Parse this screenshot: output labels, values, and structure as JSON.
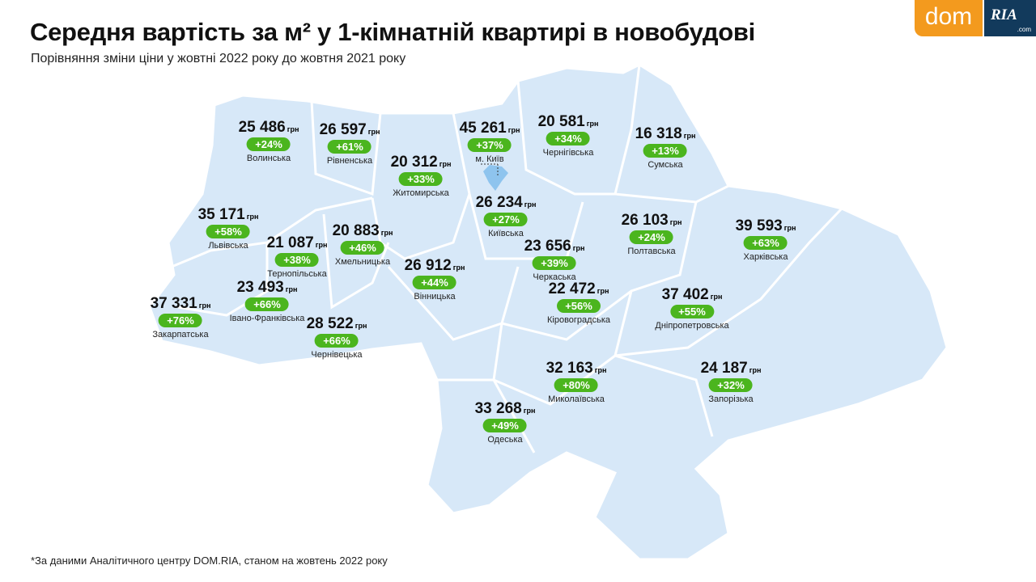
{
  "title": "Середня вартість за м² у 1-кімнатній квартирі в новобудові",
  "subtitle": "Порівняння зміни ціни у жовтні 2022 року до жовтня 2021 року",
  "footnote": "*За даними Аналітичного центру DOM.RIA, станом на жовтень 2022 року",
  "logo": {
    "dom": "dom",
    "ria": "RIA",
    "ria_domain": ".com"
  },
  "unit": "грн",
  "colors": {
    "map_fill": "#d7e8f8",
    "badge": "#4bb51e",
    "dom_orange": "#f39a1e",
    "ria_navy": "#123a5c",
    "kyiv_city": "#8ec4ee"
  },
  "regions": [
    {
      "name": "Волинська",
      "price": "25 486",
      "change": "+24%"
    },
    {
      "name": "Рівненська",
      "price": "26 597",
      "change": "+61%"
    },
    {
      "name": "м. Київ",
      "price": "45 261",
      "change": "+37%"
    },
    {
      "name": "Чернігівська",
      "price": "20 581",
      "change": "+34%"
    },
    {
      "name": "Сумська",
      "price": "16 318",
      "change": "+13%"
    },
    {
      "name": "Житомирська",
      "price": "20 312",
      "change": "+33%"
    },
    {
      "name": "Київська",
      "price": "26 234",
      "change": "+27%"
    },
    {
      "name": "Львівська",
      "price": "35 171",
      "change": "+58%"
    },
    {
      "name": "Тернопільська",
      "price": "21 087",
      "change": "+38%"
    },
    {
      "name": "Хмельницька",
      "price": "20 883",
      "change": "+46%"
    },
    {
      "name": "Полтавська",
      "price": "26 103",
      "change": "+24%"
    },
    {
      "name": "Харківська",
      "price": "39 593",
      "change": "+63%"
    },
    {
      "name": "Черкаська",
      "price": "23 656",
      "change": "+39%"
    },
    {
      "name": "Вінницька",
      "price": "26 912",
      "change": "+44%"
    },
    {
      "name": "Івано-Франківська",
      "price": "23 493",
      "change": "+66%"
    },
    {
      "name": "Закарпатська",
      "price": "37 331",
      "change": "+76%"
    },
    {
      "name": "Кіровоградська",
      "price": "22 472",
      "change": "+56%"
    },
    {
      "name": "Дніпропетровська",
      "price": "37 402",
      "change": "+55%"
    },
    {
      "name": "Чернівецька",
      "price": "28 522",
      "change": "+66%"
    },
    {
      "name": "Миколаївська",
      "price": "32 163",
      "change": "+80%"
    },
    {
      "name": "Запорізька",
      "price": "24 187",
      "change": "+32%"
    },
    {
      "name": "Одеська",
      "price": "33 268",
      "change": "+49%"
    }
  ]
}
